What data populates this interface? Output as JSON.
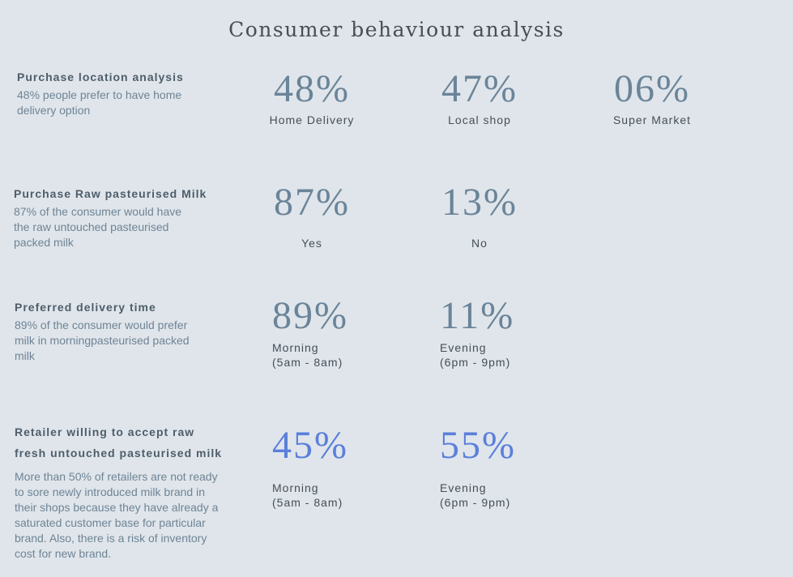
{
  "title": "Consumer behaviour analysis",
  "sections": [
    {
      "heading": "Purchase location analysis",
      "description": "48% people prefer to have home delivery option",
      "stats": [
        {
          "value": "48%",
          "label": "Home Delivery"
        },
        {
          "value": "47%",
          "label": "Local shop"
        },
        {
          "value": "06%",
          "label": "Super Market"
        }
      ]
    },
    {
      "heading": "Purchase Raw pasteurised Milk",
      "description": "87% of the consumer would have the raw untouched pasteurised packed milk",
      "stats": [
        {
          "value": "87%",
          "label": "Yes"
        },
        {
          "value": "13%",
          "label": "No"
        }
      ]
    },
    {
      "heading": "Preferred delivery time",
      "description": "89% of the consumer would prefer milk in morningpasteurised packed milk",
      "stats": [
        {
          "value": "89%",
          "label_line1": "Morning",
          "label_line2": "(5am - 8am)"
        },
        {
          "value": "11%",
          "label_line1": "Evening",
          "label_line2": "(6pm - 9pm)"
        }
      ]
    },
    {
      "heading_line1": "Retailer willing to accept raw",
      "heading_line2": "fresh untouched pasteurised milk",
      "description": "More than 50% of retailers are not ready to sore newly introduced milk brand in their shops because they have already a saturated customer base for particular brand. Also, there is a risk of inventory cost for new brand.",
      "stats": [
        {
          "value": "45%",
          "label_line1": "Morning",
          "label_line2": "(5am - 8am)"
        },
        {
          "value": "55%",
          "label_line1": "Evening",
          "label_line2": "(6pm - 9pm)"
        }
      ]
    }
  ],
  "colors": {
    "background": "#dfe5ea",
    "percent": "#6a8499",
    "percent_highlight": "#5b7fdb",
    "heading": "#4e5d6b",
    "description": "#6f8496"
  }
}
